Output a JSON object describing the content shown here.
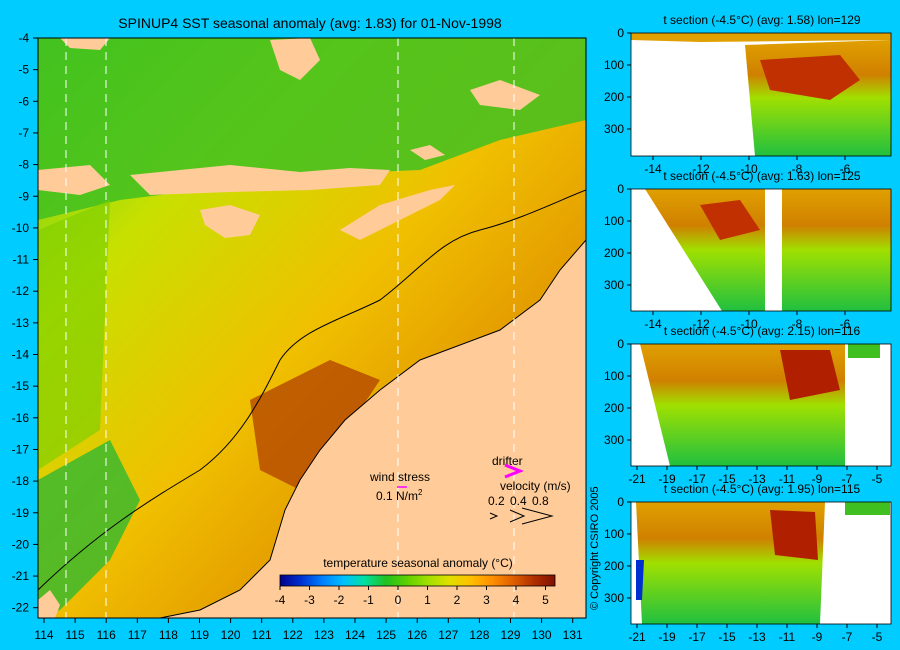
{
  "main_map": {
    "title": "SPINUP4 SST seasonal anomaly (avg: 1.83) for 01-Nov-1998",
    "x_ticks": [
      "114",
      "115",
      "116",
      "117",
      "118",
      "119",
      "120",
      "121",
      "122",
      "123",
      "124",
      "125",
      "126",
      "127",
      "128",
      "129",
      "130",
      "131"
    ],
    "y_ticks": [
      "-4",
      "-5",
      "-6",
      "-7",
      "-8",
      "-9",
      "-10",
      "-11",
      "-12",
      "-13",
      "-14",
      "-15",
      "-16",
      "-17",
      "-18",
      "-19",
      "-20",
      "-21",
      "-22"
    ],
    "wind_stress_label": "wind stress",
    "wind_stress_value": "0.1 N/m",
    "wind_stress_exp": "2",
    "drifter_label": "drifter",
    "velocity_label": "velocity (m/s)",
    "velocity_values": [
      "0.2",
      "0.4",
      "0.8"
    ],
    "colorbar": {
      "label": "temperature seasonal anomaly (°C)",
      "ticks": [
        "-4",
        "-3",
        "-2",
        "-1",
        "0",
        "1",
        "2",
        "3",
        "4",
        "5"
      ],
      "colors": [
        "#00008b",
        "#0030d0",
        "#0080ff",
        "#00c0ff",
        "#00e0a0",
        "#20c020",
        "#60d000",
        "#a0e000",
        "#e0e000",
        "#ffc000",
        "#ff9000",
        "#e06000",
        "#b03000",
        "#801000"
      ]
    },
    "copyright": "© Copyright CSIRO 2005"
  },
  "chart_data": [
    {
      "type": "heatmap",
      "title": "SPINUP4 SST seasonal anomaly (avg: 1.83) for 01-Nov-1998",
      "xlim": [
        113.5,
        131.3
      ],
      "ylim": [
        -22.5,
        -4
      ],
      "average": 1.83,
      "color_range": [
        -4,
        5.3
      ]
    },
    {
      "type": "heatmap",
      "title": "t section (-4.5°C) (avg: 1.58) lon=129",
      "x_ticks": [
        "-14",
        "-12",
        "-10",
        "-8",
        "-6"
      ],
      "y_ticks": [
        "0",
        "100",
        "200",
        "300"
      ],
      "average": 1.58
    },
    {
      "type": "heatmap",
      "title": "t section (-4.5°C) (avg: 1.63) lon=125",
      "x_ticks": [
        "-14",
        "-12",
        "-10",
        "-8",
        "-6"
      ],
      "y_ticks": [
        "0",
        "100",
        "200",
        "300"
      ],
      "average": 1.63
    },
    {
      "type": "heatmap",
      "title": "t section (-4.5°C) (avg: 2.15) lon=116",
      "x_ticks": [
        "-21",
        "-19",
        "-17",
        "-15",
        "-13",
        "-11",
        "-9",
        "-7",
        "-5"
      ],
      "y_ticks": [
        "0",
        "100",
        "200",
        "300"
      ],
      "average": 2.15
    },
    {
      "type": "heatmap",
      "title": "t section (-4.5°C) (avg: 1.95) lon=115",
      "x_ticks": [
        "-21",
        "-19",
        "-17",
        "-15",
        "-13",
        "-11",
        "-9",
        "-7",
        "-5"
      ],
      "y_ticks": [
        "0",
        "100",
        "200",
        "300"
      ],
      "average": 1.95
    }
  ]
}
